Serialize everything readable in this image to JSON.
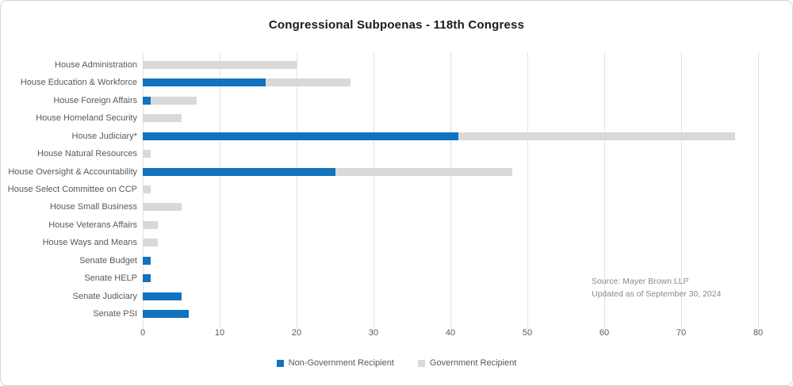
{
  "chart_data": {
    "type": "bar",
    "orientation": "horizontal",
    "stacked": true,
    "title": "Congressional Subpoenas - 118th Congress",
    "categories": [
      "House Administration",
      "House Education & Workforce",
      "House Foreign Affairs",
      "House Homeland Security",
      "House Judiciary*",
      "House Natural Resources",
      "House Oversight & Accountability",
      "House Select Committee on CCP",
      "House Small Business",
      "House Veterans Affairs",
      "House Ways and Means",
      "Senate Budget",
      "Senate HELP",
      "Senate Judiciary",
      "Senate PSI"
    ],
    "series": [
      {
        "name": "Non-Government Recipient",
        "color": "#1272BD",
        "values": [
          0,
          16,
          1,
          0,
          41,
          0,
          25,
          0,
          0,
          0,
          0,
          1,
          1,
          5,
          6
        ]
      },
      {
        "name": "Government Recipient",
        "color": "#D9D9D9",
        "values": [
          20,
          11,
          6,
          5,
          36,
          1,
          23,
          1,
          5,
          2,
          2,
          0,
          0,
          0,
          0
        ]
      }
    ],
    "x_axis": {
      "min": 0,
      "max": 80,
      "ticks": [
        0,
        10,
        20,
        30,
        40,
        50,
        60,
        70,
        80
      ],
      "gridlines": true
    },
    "legend_position": "bottom",
    "annotation": {
      "line1": "Source: Mayer Brown LLP",
      "line2": "Updated as of September 30, 2024"
    }
  }
}
